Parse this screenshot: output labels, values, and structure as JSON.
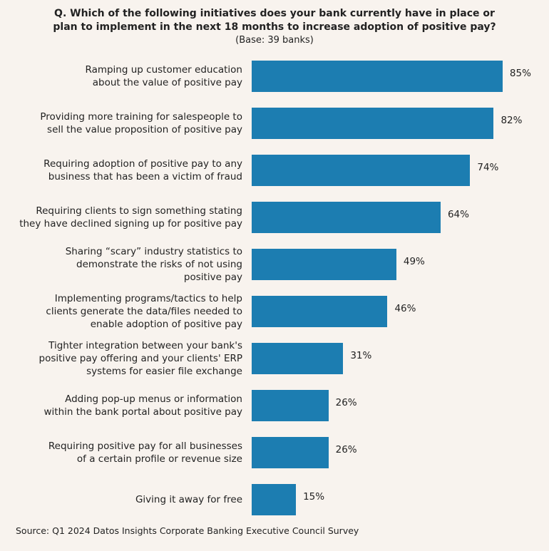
{
  "chart_data": {
    "type": "bar",
    "orientation": "horizontal",
    "title": "Q. Which of the following initiatives does your bank currently have in place or\nplan to implement in the next 18 months to increase adoption of positive pay?",
    "subtitle": "(Base: 39 banks)",
    "categories": [
      "Ramping up customer education\nabout the value of positive pay",
      "Providing more training for salespeople to\nsell the value proposition of positive pay",
      "Requiring adoption of positive pay to any\nbusiness that has been a victim of fraud",
      "Requiring clients to sign something stating\nthey have declined signing up for positive pay",
      "Sharing “scary” industry statistics to\ndemonstrate the risks of not using\npositive pay",
      "Implementing programs/tactics to help\nclients generate the data/files needed to\nenable adoption of positive pay",
      "Tighter integration between your bank's\npositive pay offering and your clients' ERP\nsystems for easier file exchange",
      "Adding pop-up menus or information\nwithin the bank portal about positive pay",
      "Requiring positive pay for all businesses\nof a certain profile or revenue size",
      "Giving it away for free"
    ],
    "values": [
      85,
      82,
      74,
      64,
      49,
      46,
      31,
      26,
      26,
      15
    ],
    "value_labels": [
      "85%",
      "82%",
      "74%",
      "64%",
      "49%",
      "46%",
      "31%",
      "26%",
      "26%",
      "15%"
    ],
    "color": "#1c7db1",
    "xlim": [
      0,
      100
    ],
    "source": "Source: Q1 2024 Datos Insights Corporate Banking Executive Council Survey"
  }
}
